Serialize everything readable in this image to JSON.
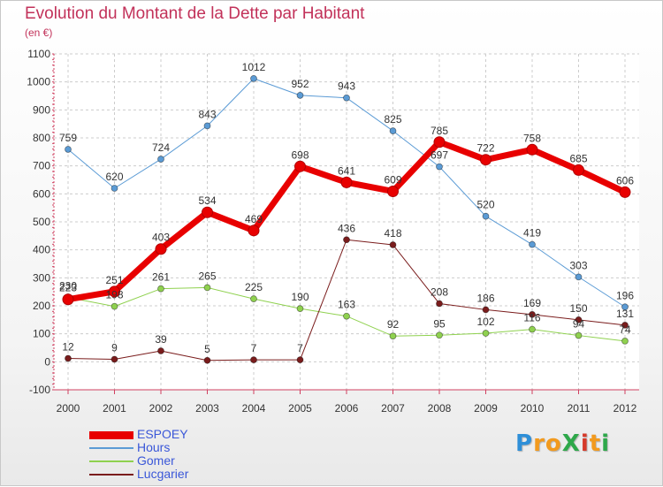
{
  "title": "Evolution du Montant de la Dette par Habitant",
  "unit_note": "(en €)",
  "logo": {
    "text": "ProXiti",
    "letters": [
      "P",
      "r",
      "o",
      "X",
      "i",
      "t",
      "i"
    ],
    "letter_colors": [
      "#2e8fd8",
      "#f29a1e",
      "#f29a1e",
      "#2ea84a",
      "#d63a2a",
      "#f29a1e",
      "#2ea84a"
    ]
  },
  "chart_data": {
    "type": "line",
    "title": "Evolution du Montant de la Dette par Habitant",
    "ylabel": "(en €)",
    "xlabel": "",
    "x": [
      "2000",
      "2001",
      "2002",
      "2003",
      "2004",
      "2005",
      "2006",
      "2007",
      "2008",
      "2009",
      "2010",
      "2011",
      "2012"
    ],
    "ylim": [
      -100,
      1100
    ],
    "yticks": [
      "-100",
      "0",
      "100",
      "200",
      "300",
      "400",
      "500",
      "600",
      "700",
      "800",
      "900",
      "1000",
      "1100"
    ],
    "grid": "horizontal dashed",
    "legend_position": "bottom-left",
    "series": [
      {
        "name": "ESPOEY",
        "color": "#e80000",
        "emphasis": "thick",
        "values": [
          223,
          251,
          403,
          534,
          469,
          698,
          641,
          609,
          785,
          722,
          758,
          685,
          606
        ],
        "labels": [
          "223",
          "251",
          "403",
          "534",
          "469",
          "698",
          "641",
          "609",
          "785",
          "722",
          "758",
          "685",
          "606"
        ]
      },
      {
        "name": "Hours",
        "color": "#5b9bd5",
        "emphasis": "thin",
        "values": [
          759,
          620,
          724,
          843,
          1012,
          952,
          943,
          825,
          697,
          520,
          419,
          303,
          196
        ],
        "labels": [
          "759",
          "620",
          "724",
          "843",
          "1012",
          "952",
          "943",
          "825",
          "697",
          "520",
          "419",
          "303",
          "196"
        ]
      },
      {
        "name": "Gomer",
        "color": "#8fd14f",
        "emphasis": "thin",
        "values": [
          230,
          198,
          261,
          265,
          225,
          190,
          163,
          92,
          95,
          102,
          116,
          94,
          74
        ],
        "labels": [
          "230",
          "198",
          "261",
          "265",
          "225",
          "190",
          "163",
          "92",
          "95",
          "102",
          "116",
          "94",
          "74"
        ]
      },
      {
        "name": "Lucgarier",
        "color": "#7a1c1c",
        "emphasis": "thin",
        "values": [
          12,
          9,
          39,
          5,
          7,
          7,
          436,
          418,
          208,
          186,
          169,
          150,
          131
        ],
        "labels": [
          "12",
          "9",
          "39",
          "5",
          "7",
          "7",
          "436",
          "418",
          "208",
          "186",
          "169",
          "150",
          "131"
        ]
      }
    ]
  }
}
